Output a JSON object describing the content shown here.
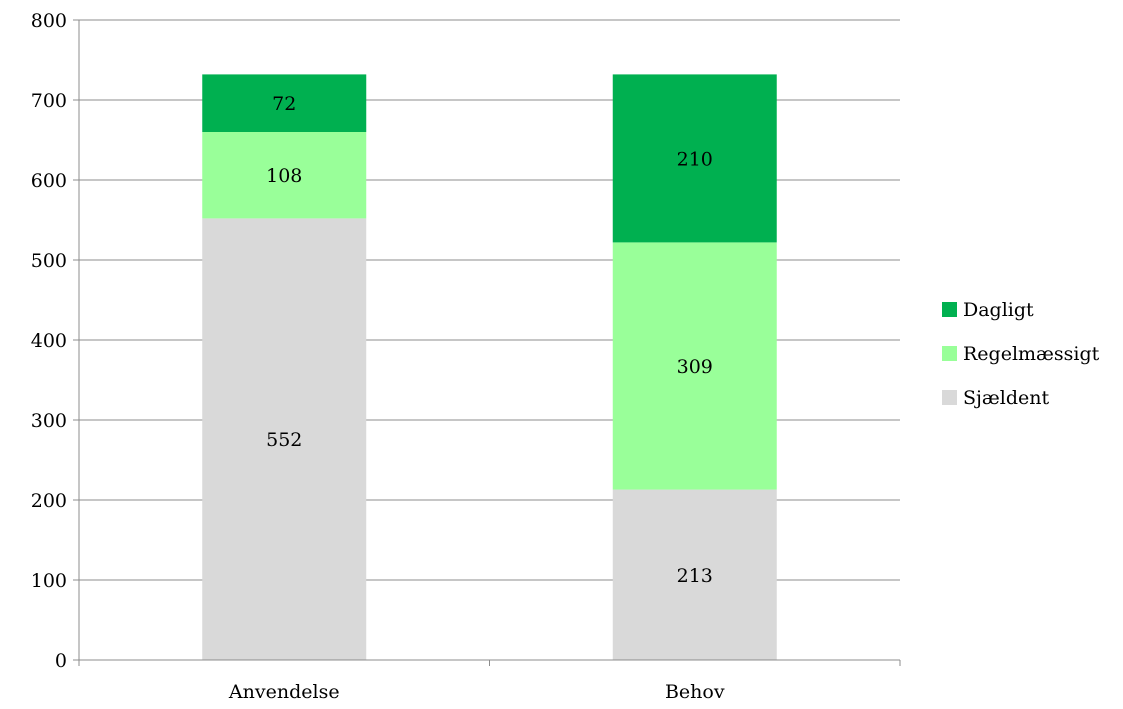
{
  "chart_data": {
    "type": "bar",
    "stacked": true,
    "categories": [
      "Anvendelse",
      "Behov"
    ],
    "series": [
      {
        "name": "Sjældent",
        "values": [
          552,
          213
        ],
        "color": "#d9d9d9"
      },
      {
        "name": "Regelmæssigt",
        "values": [
          108,
          309
        ],
        "color": "#99ff99"
      },
      {
        "name": "Dagligt",
        "values": [
          72,
          210
        ],
        "color": "#00b050"
      }
    ],
    "ylim": [
      0,
      800
    ],
    "yticks": [
      0,
      100,
      200,
      300,
      400,
      500,
      600,
      700,
      800
    ],
    "grid": true,
    "legend": "right",
    "data_labels": true
  }
}
